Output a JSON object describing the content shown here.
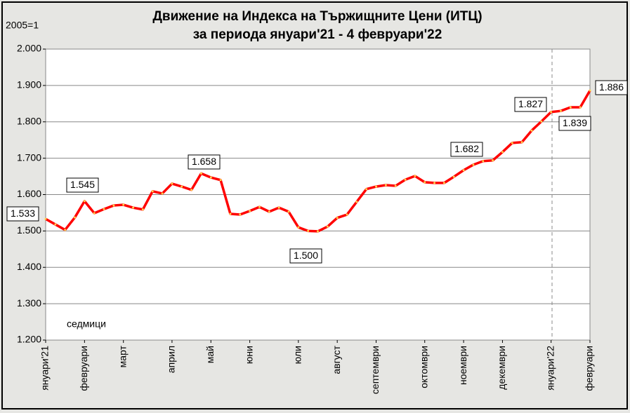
{
  "chart_data": {
    "type": "line",
    "title": "Движение на Индекса на Тържищните Цени (ИТЦ)",
    "subtitle": "за периода януари'21 - 4 февруари'22",
    "y_label": "2005=1",
    "x_label": "седмици",
    "categories": [
      "януари'21",
      null,
      null,
      null,
      "февруари",
      null,
      null,
      null,
      "март",
      null,
      null,
      null,
      null,
      "април",
      null,
      null,
      null,
      "май",
      null,
      null,
      null,
      "юни",
      null,
      null,
      null,
      null,
      "юли",
      null,
      null,
      null,
      "август",
      null,
      null,
      null,
      "септември",
      null,
      null,
      null,
      null,
      "октомври",
      null,
      null,
      null,
      "ноември",
      null,
      null,
      null,
      "декември",
      null,
      null,
      null,
      null,
      "януари'22",
      null,
      null,
      null,
      "февруари"
    ],
    "series": [
      {
        "name": "ИТЦ",
        "color": "#ff0000",
        "values": [
          1.533,
          1.518,
          1.503,
          1.537,
          1.582,
          1.549,
          1.56,
          1.57,
          1.572,
          1.564,
          1.559,
          1.609,
          1.603,
          1.63,
          1.622,
          1.613,
          1.658,
          1.647,
          1.64,
          1.547,
          1.545,
          1.555,
          1.566,
          1.553,
          1.564,
          1.553,
          1.51,
          1.5,
          1.499,
          1.512,
          1.536,
          1.545,
          1.58,
          1.615,
          1.622,
          1.626,
          1.624,
          1.641,
          1.651,
          1.634,
          1.632,
          1.632,
          1.649,
          1.667,
          1.682,
          1.692,
          1.694,
          1.717,
          1.742,
          1.744,
          1.776,
          1.801,
          1.827,
          1.83,
          1.84,
          1.84,
          1.886
        ]
      }
    ],
    "annotations": [
      "1.533",
      "1.545",
      "1.658",
      "1.500",
      "1.682",
      "1.827",
      "1.839",
      "1.886"
    ],
    "ylim": [
      1.2,
      2.0
    ],
    "yticks": [
      {
        "value": 1.2,
        "label": "1.200"
      },
      {
        "value": 1.3,
        "label": "1.300"
      },
      {
        "value": 1.4,
        "label": "1.400"
      },
      {
        "value": 1.5,
        "label": "1.500"
      },
      {
        "value": 1.6,
        "label": "1.600"
      },
      {
        "value": 1.7,
        "label": "1.700"
      },
      {
        "value": 1.8,
        "label": "1.800"
      },
      {
        "value": 1.9,
        "label": "1.900"
      },
      {
        "value": 2.0,
        "label": "2.000"
      }
    ],
    "grid": true
  }
}
